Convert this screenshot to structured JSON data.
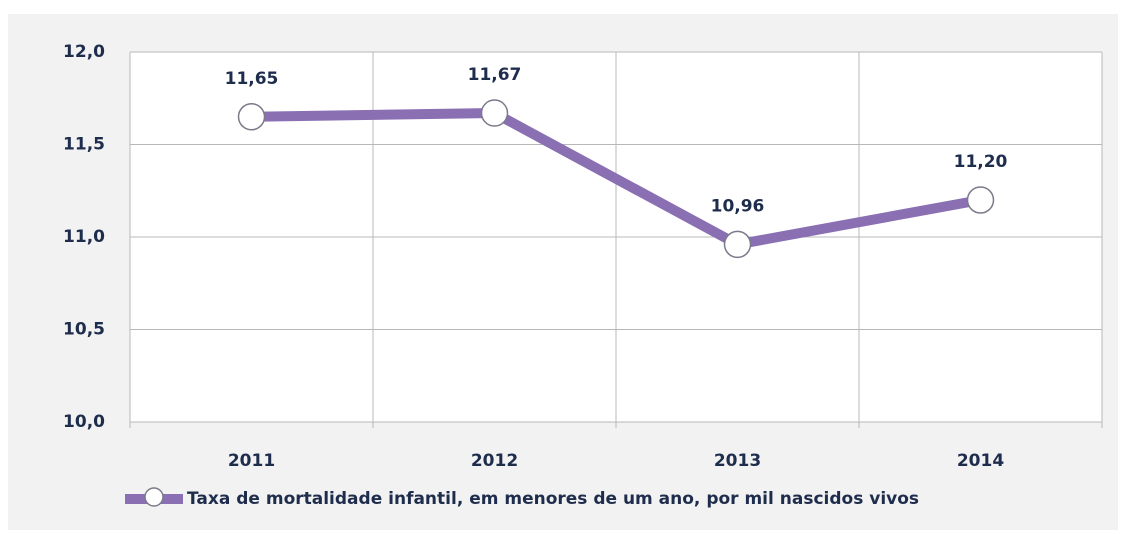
{
  "chart_data": {
    "type": "line",
    "categories": [
      "2011",
      "2012",
      "2013",
      "2014"
    ],
    "series": [
      {
        "name": "Taxa de mortalidade infantil, em menores de um ano, por mil nascidos vivos",
        "color": "#8a6fb3",
        "values": [
          11.65,
          11.67,
          10.96,
          11.2
        ],
        "value_labels": [
          "11,65",
          "11,67",
          "10,96",
          "11,20"
        ]
      }
    ],
    "ylim": [
      10,
      12
    ],
    "yticks": [
      {
        "value": 10,
        "label": "10,0"
      },
      {
        "value": 10.5,
        "label": "10,5"
      },
      {
        "value": 11,
        "label": "11,0"
      },
      {
        "value": 11.5,
        "label": "11,5"
      },
      {
        "value": 12,
        "label": "12,0"
      }
    ],
    "grid": true,
    "legend": "bottom"
  }
}
